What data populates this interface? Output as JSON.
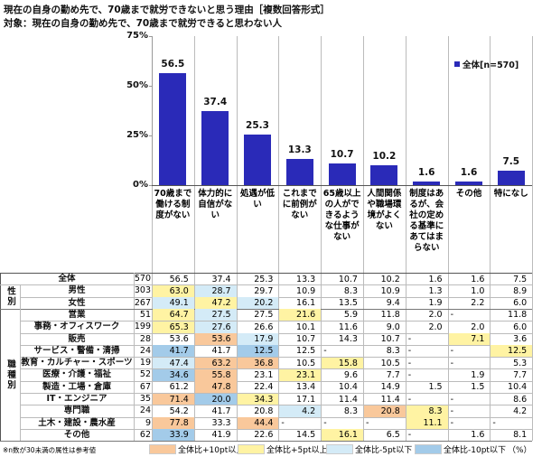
{
  "header": {
    "title": "現在の自身の勤め先で、70歳まで就労できないと思う理由［複数回答形式］",
    "subtitle": "対象：現在の自身の勤め先で、70歳まで就労できると思わない人"
  },
  "chart_data": {
    "type": "bar",
    "categories": [
      "70歳まで働ける制度がない",
      "体力的に自信がない",
      "処遇が低い",
      "これまでに前例がない",
      "65歳以上の人ができるような仕事がない",
      "人間関係や職場環境がよくない",
      "制度はあるが、会社の定める基準にあてはまらない",
      "その他",
      "特になし"
    ],
    "series": [
      {
        "name": "全体[n=570]",
        "color": "#2a2ab8",
        "values": [
          56.5,
          37.4,
          25.3,
          13.3,
          10.7,
          10.2,
          1.6,
          1.6,
          7.5
        ]
      }
    ],
    "ylim": [
      0,
      75
    ],
    "yticks": [
      {
        "value": 0,
        "label": "0%"
      },
      {
        "value": 25,
        "label": "25%"
      },
      {
        "value": 50,
        "label": "50%"
      },
      {
        "value": 75,
        "label": "75%"
      }
    ],
    "legend_position": "upper right"
  },
  "table": {
    "total": {
      "label": "全体",
      "n": 570,
      "cells": [
        "56.5",
        "37.4",
        "25.3",
        "13.3",
        "10.7",
        "10.2",
        "1.6",
        "1.6",
        "7.5"
      ]
    },
    "groups": [
      {
        "label": "性別",
        "rows": [
          {
            "label": "男性",
            "n": 303,
            "cells": [
              "63.0",
              "28.7",
              "29.7",
              "10.9",
              "8.3",
              "10.9",
              "1.3",
              "1.0",
              "8.9"
            ]
          },
          {
            "label": "女性",
            "n": 267,
            "cells": [
              "49.1",
              "47.2",
              "20.2",
              "16.1",
              "13.5",
              "9.4",
              "1.9",
              "2.2",
              "6.0"
            ]
          }
        ]
      },
      {
        "label": "職種別",
        "rows": [
          {
            "label": "営業",
            "n": 51,
            "cells": [
              "64.7",
              "27.5",
              "27.5",
              "21.6",
              "5.9",
              "11.8",
              "2.0",
              "-",
              "11.8"
            ]
          },
          {
            "label": "事務・オフィスワーク",
            "n": 199,
            "cells": [
              "65.3",
              "27.6",
              "26.6",
              "10.1",
              "11.6",
              "9.0",
              "2.0",
              "2.0",
              "6.0"
            ]
          },
          {
            "label": "販売",
            "n": 28,
            "cells": [
              "53.6",
              "53.6",
              "17.9",
              "10.7",
              "14.3",
              "10.7",
              "-",
              "7.1",
              "3.6"
            ]
          },
          {
            "label": "サービス・警備・清掃",
            "n": 24,
            "cells": [
              "41.7",
              "41.7",
              "12.5",
              "12.5",
              "-",
              "8.3",
              "-",
              "-",
              "12.5"
            ]
          },
          {
            "label": "教育・カルチャー・スポーツ",
            "n": 19,
            "cells": [
              "47.4",
              "63.2",
              "36.8",
              "10.5",
              "15.8",
              "10.5",
              "-",
              "-",
              "5.3"
            ]
          },
          {
            "label": "医療・介護・福祉",
            "n": 52,
            "cells": [
              "34.6",
              "55.8",
              "23.1",
              "23.1",
              "9.6",
              "7.7",
              "-",
              "1.9",
              "7.7"
            ]
          },
          {
            "label": "製造・工場・倉庫",
            "n": 67,
            "cells": [
              "61.2",
              "47.8",
              "22.4",
              "13.4",
              "10.4",
              "14.9",
              "1.5",
              "1.5",
              "10.4"
            ]
          },
          {
            "label": "IT・エンジニア",
            "n": 35,
            "cells": [
              "71.4",
              "20.0",
              "34.3",
              "17.1",
              "11.4",
              "11.4",
              "-",
              "-",
              "8.6"
            ]
          },
          {
            "label": "専門職",
            "n": 24,
            "cells": [
              "54.2",
              "41.7",
              "20.8",
              "4.2",
              "8.3",
              "20.8",
              "8.3",
              "-",
              "4.2"
            ]
          },
          {
            "label": "土木・建設・農水産",
            "n": 9,
            "cells": [
              "77.8",
              "33.3",
              "44.4",
              "-",
              "-",
              "-",
              "11.1",
              "-",
              "-"
            ]
          },
          {
            "label": "その他",
            "n": 62,
            "cells": [
              "33.9",
              "41.9",
              "22.6",
              "14.5",
              "16.1",
              "6.5",
              "-",
              "1.6",
              "8.1"
            ]
          }
        ]
      }
    ]
  },
  "legend": [
    {
      "label": "全体比+10pt以上",
      "color": "#f9c89b",
      "threshold": 10
    },
    {
      "label": "全体比+5pt以上",
      "color": "#fff3a3",
      "threshold": 5
    },
    {
      "label": "全体比-5pt以下",
      "color": "#d4ebf7",
      "threshold": -5
    },
    {
      "label": "全体比-10pt以下",
      "color": "#a3cbe9",
      "threshold": -10
    }
  ],
  "note": "※n数が30未満の属性は参考値",
  "unit": "（%）"
}
